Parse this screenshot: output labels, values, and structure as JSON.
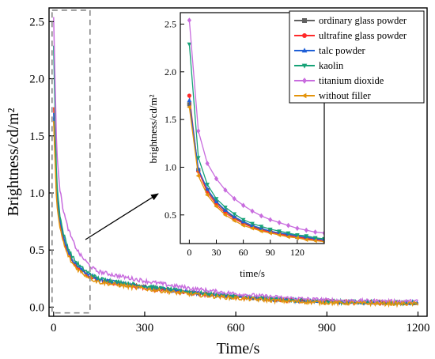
{
  "chart_data": {
    "type": "line",
    "main": {
      "xlabel": "Time/s",
      "ylabel": "Brightness/cd/m²",
      "xlim": [
        -15,
        1230
      ],
      "ylim": [
        -0.08,
        2.62
      ],
      "x_ticks": [
        0,
        300,
        600,
        900,
        1200
      ],
      "y_ticks": [
        0.0,
        0.5,
        1.0,
        1.5,
        2.0,
        2.5
      ],
      "x_tick_labels": [
        "0",
        "300",
        "600",
        "900",
        "1200"
      ],
      "y_tick_labels": [
        "0.0",
        "0.5",
        "1.0",
        "1.5",
        "2.0",
        "2.5"
      ]
    },
    "inset": {
      "xlabel": "time/s",
      "ylabel": "brightness/cd/m²",
      "xlim": [
        -10,
        150
      ],
      "ylim": [
        0.2,
        2.62
      ],
      "x_ticks": [
        0,
        30,
        60,
        90,
        120
      ],
      "y_ticks": [
        0.5,
        1.0,
        1.5,
        2.0,
        2.5
      ],
      "x_tick_labels": [
        "0",
        "30",
        "60",
        "90",
        "120"
      ],
      "y_tick_labels": [
        "0.5",
        "1.0",
        "1.5",
        "2.0",
        "2.5"
      ]
    },
    "zoom_region": {
      "x": [
        -5,
        120
      ],
      "y": [
        -0.05,
        2.6
      ]
    },
    "legend_position": "top-right",
    "series": [
      {
        "name": "ordinary glass powder",
        "color": "#616161",
        "marker": "square",
        "inset_x": [
          0,
          10,
          20,
          30,
          40,
          50,
          60,
          70,
          80,
          90,
          100,
          110,
          120,
          130,
          140,
          150
        ],
        "inset_y": [
          1.66,
          0.97,
          0.76,
          0.63,
          0.54,
          0.47,
          0.42,
          0.38,
          0.35,
          0.33,
          0.31,
          0.29,
          0.27,
          0.26,
          0.25,
          0.24
        ],
        "main_y_start": 1.66,
        "main_y_end": 0.04
      },
      {
        "name": "ultrafine glass powder",
        "color": "#ff2a2a",
        "marker": "circle",
        "inset_x": [
          0,
          10,
          20,
          30,
          40,
          50,
          60,
          70,
          80,
          90,
          100,
          110,
          120,
          130,
          140,
          150
        ],
        "inset_y": [
          1.75,
          0.96,
          0.74,
          0.61,
          0.52,
          0.46,
          0.41,
          0.37,
          0.34,
          0.32,
          0.3,
          0.28,
          0.27,
          0.25,
          0.24,
          0.23
        ],
        "main_y_start": 1.75,
        "main_y_end": 0.04
      },
      {
        "name": "talc powder",
        "color": "#1f5fd6",
        "marker": "triangle-up",
        "inset_x": [
          0,
          10,
          20,
          30,
          40,
          50,
          60,
          70,
          80,
          90,
          100,
          110,
          120,
          130,
          140,
          150
        ],
        "inset_y": [
          1.7,
          0.98,
          0.77,
          0.64,
          0.55,
          0.48,
          0.43,
          0.39,
          0.36,
          0.33,
          0.31,
          0.3,
          0.28,
          0.27,
          0.25,
          0.24
        ],
        "main_y_start": 1.7,
        "main_y_end": 0.04
      },
      {
        "name": "kaolin",
        "color": "#16a277",
        "marker": "triangle-down",
        "inset_x": [
          0,
          10,
          20,
          30,
          40,
          50,
          60,
          70,
          80,
          90,
          100,
          110,
          120,
          130,
          140,
          150
        ],
        "inset_y": [
          2.29,
          1.1,
          0.82,
          0.67,
          0.58,
          0.51,
          0.45,
          0.41,
          0.38,
          0.35,
          0.33,
          0.31,
          0.29,
          0.28,
          0.26,
          0.25
        ],
        "main_y_start": 2.29,
        "main_y_end": 0.04
      },
      {
        "name": "titanium dioxide",
        "color": "#c86cde",
        "marker": "diamond",
        "inset_x": [
          0,
          10,
          20,
          30,
          40,
          50,
          60,
          70,
          80,
          90,
          100,
          110,
          120,
          130,
          140,
          150
        ],
        "inset_y": [
          2.54,
          1.38,
          1.04,
          0.88,
          0.76,
          0.67,
          0.6,
          0.54,
          0.49,
          0.45,
          0.42,
          0.39,
          0.36,
          0.34,
          0.32,
          0.31
        ],
        "main_y_start": 2.54,
        "main_y_end": 0.05
      },
      {
        "name": "without filler",
        "color": "#e3930a",
        "marker": "triangle-left",
        "inset_x": [
          0,
          10,
          20,
          30,
          40,
          50,
          60,
          70,
          80,
          90,
          100,
          110,
          120,
          130,
          140,
          150
        ],
        "inset_y": [
          1.63,
          0.91,
          0.71,
          0.59,
          0.5,
          0.44,
          0.39,
          0.36,
          0.33,
          0.31,
          0.29,
          0.27,
          0.26,
          0.24,
          0.23,
          0.22
        ],
        "main_y_start": 1.63,
        "main_y_end": 0.03
      }
    ]
  }
}
